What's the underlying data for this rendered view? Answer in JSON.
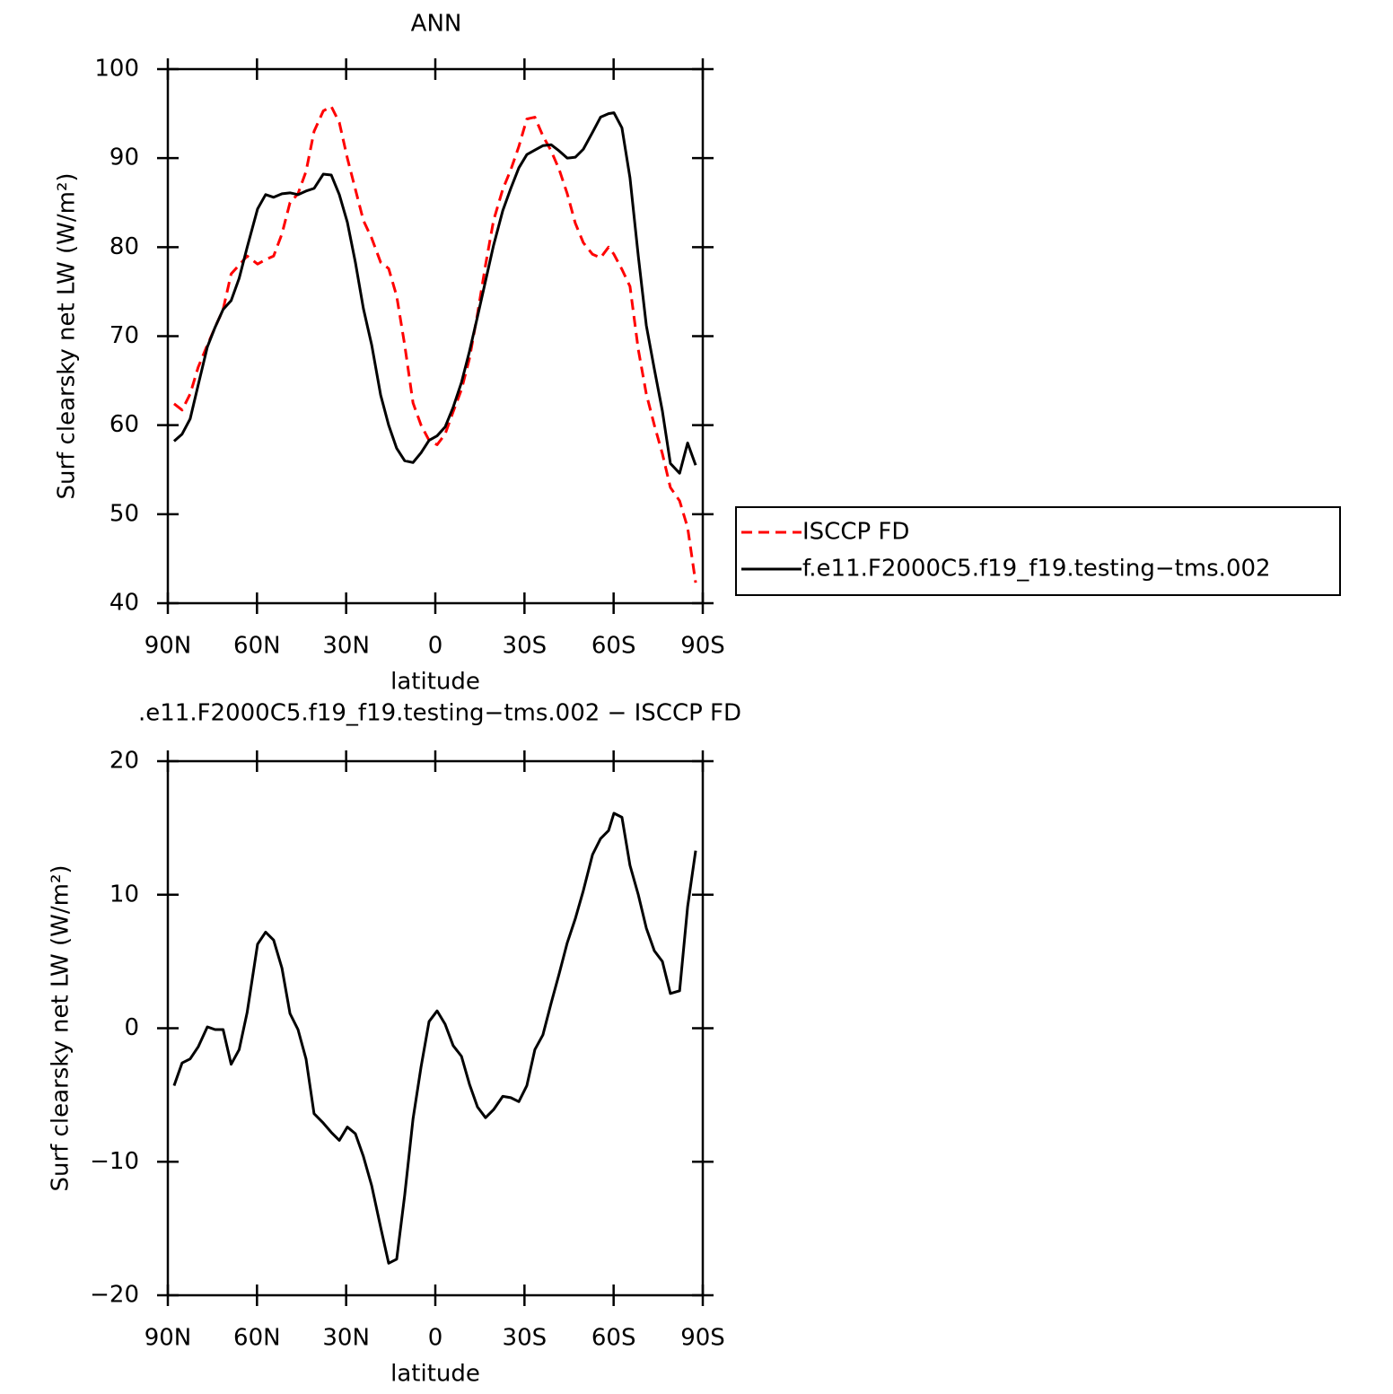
{
  "chart_data": [
    {
      "type": "line",
      "title": "ANN",
      "x_label": "latitude",
      "y_label": "Surf clearsky net LW (W/m²)",
      "x": [
        87.9,
        85.2,
        82.5,
        79.8,
        76.7,
        74.1,
        71.4,
        68.7,
        66.0,
        63.3,
        59.8,
        57.1,
        54.4,
        51.6,
        48.9,
        46.2,
        43.5,
        40.8,
        37.7,
        35.0,
        32.3,
        29.6,
        26.9,
        24.2,
        21.4,
        18.4,
        15.7,
        13.0,
        10.3,
        7.5,
        4.8,
        2.1,
        -0.6,
        -3.3,
        -6.0,
        -8.8,
        -11.5,
        -14.2,
        -16.9,
        -19.6,
        -22.7,
        -25.4,
        -28.1,
        -30.8,
        -33.5,
        -36.2,
        -39.0,
        -41.7,
        -44.4,
        -47.1,
        -49.8,
        -52.9,
        -55.6,
        -58.3,
        -60.1,
        -62.8,
        -65.5,
        -68.3,
        -71.0,
        -73.7,
        -76.4,
        -79.1,
        -82.2,
        -84.9,
        -87.6
      ],
      "series": [
        {
          "name": "ISCCP FD",
          "color": "#ff0000",
          "line_style": "dashed",
          "values": [
            62.4,
            61.7,
            63.5,
            66.5,
            69,
            71,
            73,
            77,
            78,
            79,
            78.1,
            78.6,
            79,
            81.5,
            85,
            86,
            88.5,
            93,
            95.3,
            95.8,
            94,
            90,
            86.5,
            83,
            81,
            78.3,
            77.6,
            74.5,
            69,
            62.5,
            60,
            58.3,
            57.8,
            59,
            61.5,
            64,
            67.5,
            72.5,
            78,
            83,
            86.5,
            88.7,
            91.3,
            94.4,
            94.6,
            92.5,
            90.8,
            88.7,
            86,
            82.7,
            80.5,
            79.2,
            78.8,
            80,
            79.2,
            77.5,
            75.6,
            68.5,
            63.5,
            60,
            56.8,
            53,
            51.5,
            48.5,
            42.3
          ]
        },
        {
          "name": "f.e11.F2000C5.f19_f19.testing−tms.002",
          "color": "#000000",
          "line_style": "solid",
          "values": [
            58.2,
            59.0,
            60.7,
            64.5,
            68.8,
            71,
            73,
            74,
            76.5,
            80,
            84.3,
            85.9,
            85.6,
            86,
            86.1,
            85.9,
            86.3,
            86.6,
            88.2,
            88.1,
            85.9,
            82.8,
            78.3,
            73.1,
            69,
            63.4,
            60,
            57.4,
            56,
            55.8,
            56.9,
            58.3,
            58.8,
            59.8,
            62,
            64.8,
            68.3,
            72.2,
            76.2,
            80.2,
            84.1,
            86.6,
            88.9,
            90.4,
            90.9,
            91.4,
            91.5,
            90.8,
            90,
            90.1,
            91,
            92.9,
            94.6,
            95,
            95.1,
            93.4,
            87.8,
            79,
            71.2,
            66.3,
            61.6,
            55.7,
            54.6,
            58,
            55.5
          ]
        }
      ],
      "xlim": [
        90,
        -90
      ],
      "xticks": [
        {
          "value": 90,
          "label": "90N"
        },
        {
          "value": 60,
          "label": "60N"
        },
        {
          "value": 30,
          "label": "30N"
        },
        0,
        {
          "value": -30,
          "label": "30S"
        },
        {
          "value": -60,
          "label": "60S"
        },
        {
          "value": -90,
          "label": "90S"
        }
      ],
      "ylim": [
        40,
        100
      ],
      "yticks": [
        40,
        50,
        60,
        70,
        80,
        90,
        100
      ],
      "legend": "right"
    },
    {
      "type": "line",
      "title": ".e11.F2000C5.f19_f19.testing−tms.002 − ISCCP FD",
      "x_label": "latitude",
      "y_label": "Surf clearsky net LW (W/m²)",
      "x": [
        87.9,
        85.2,
        82.5,
        79.8,
        76.7,
        74.1,
        71.4,
        68.7,
        66.0,
        63.3,
        59.8,
        57.1,
        54.4,
        51.6,
        48.9,
        46.2,
        43.5,
        40.8,
        37.7,
        35.0,
        32.3,
        29.6,
        26.9,
        24.2,
        21.4,
        18.4,
        15.7,
        13.0,
        10.3,
        7.5,
        4.8,
        2.1,
        -0.6,
        -3.3,
        -6.0,
        -8.8,
        -11.5,
        -14.2,
        -16.9,
        -19.6,
        -22.7,
        -25.4,
        -28.1,
        -30.8,
        -33.5,
        -36.2,
        -39.0,
        -41.7,
        -44.4,
        -47.1,
        -49.8,
        -52.9,
        -55.6,
        -58.3,
        -60.1,
        -62.8,
        -65.5,
        -68.3,
        -71.0,
        -73.7,
        -76.4,
        -79.1,
        -82.2,
        -84.9,
        -87.6
      ],
      "series": [
        {
          "color": "#000000",
          "line_style": "solid",
          "values": [
            -4.3,
            -2.6,
            -2.3,
            -1.4,
            0.1,
            -0.1,
            -0.1,
            -2.7,
            -1.6,
            1.2,
            6.3,
            7.2,
            6.6,
            4.5,
            1.1,
            -0.1,
            -2.3,
            -6.4,
            -7.1,
            -7.8,
            -8.4,
            -7.4,
            -7.9,
            -9.6,
            -11.8,
            -14.9,
            -17.6,
            -17.3,
            -12.5,
            -6.8,
            -2.9,
            0.5,
            1.3,
            0.3,
            -1.3,
            -2.1,
            -4.2,
            -5.9,
            -6.7,
            -6.1,
            -5.1,
            -5.2,
            -5.5,
            -4.3,
            -1.6,
            -0.5,
            1.9,
            4.1,
            6.4,
            8.2,
            10.3,
            13.0,
            14.2,
            14.8,
            16.1,
            15.8,
            12.2,
            10,
            7.5,
            5.8,
            5.0,
            2.6,
            2.8,
            9.1,
            13.3
          ]
        }
      ],
      "xlim": [
        90,
        -90
      ],
      "xticks": [
        {
          "value": 90,
          "label": "90N"
        },
        {
          "value": 60,
          "label": "60N"
        },
        {
          "value": 30,
          "label": "30N"
        },
        0,
        {
          "value": -30,
          "label": "30S"
        },
        {
          "value": -60,
          "label": "60S"
        },
        {
          "value": -90,
          "label": "90S"
        }
      ],
      "ylim": [
        -20,
        20
      ],
      "yticks": [
        {
          "value": -20,
          "label": "−20"
        },
        {
          "value": -10,
          "label": "−10"
        },
        0,
        10,
        20
      ]
    }
  ]
}
